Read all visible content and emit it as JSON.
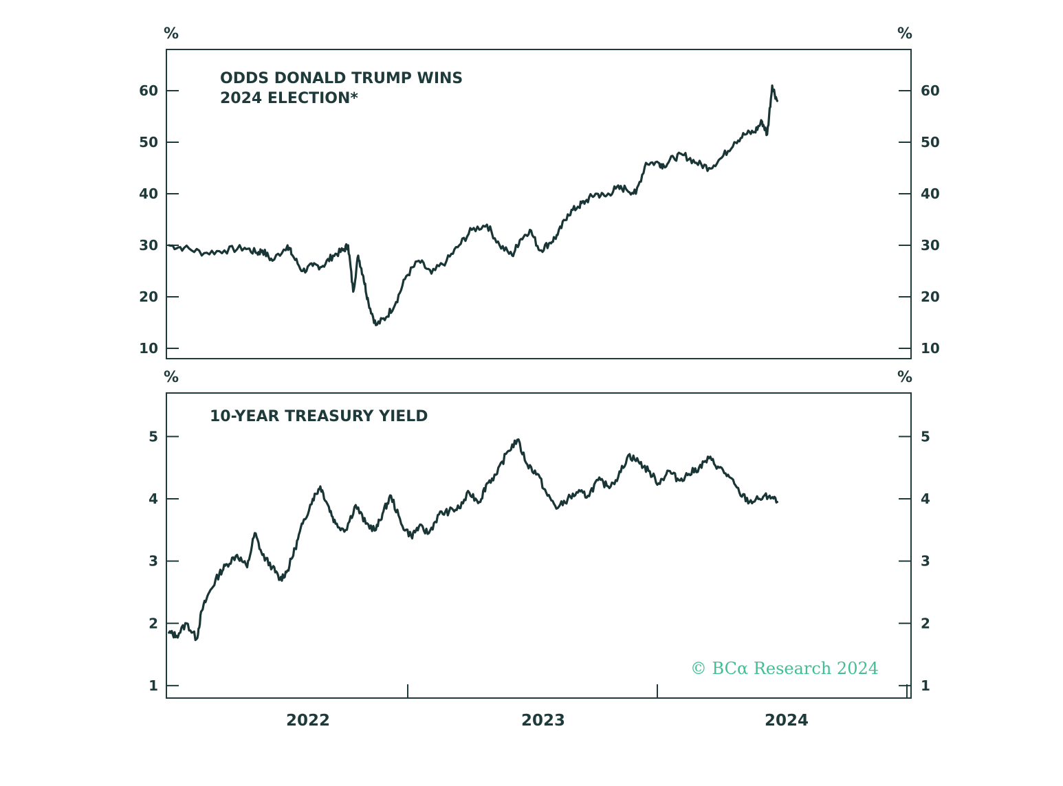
{
  "colors": {
    "line": "#1a3535",
    "text": "#1f3a3a",
    "credit": "#3fbf93"
  },
  "credit": "© BCα Research 2024",
  "chart_data": [
    {
      "type": "line",
      "title_line1": "ODDS DONALD TRUMP WINS",
      "title_line2": "2024 ELECTION*",
      "ylabel_left": "%",
      "ylabel_right": "%",
      "ylim": [
        8,
        68
      ],
      "yticks": [
        "10",
        "20",
        "30",
        "40",
        "50",
        "60"
      ],
      "x": [
        2021.56,
        2021.62,
        2021.7,
        2021.78,
        2021.86,
        2021.91,
        2021.93,
        2021.97,
        2022.03,
        2022.05,
        2022.09,
        2022.13,
        2022.17,
        2022.21,
        2022.25,
        2022.27,
        2022.29,
        2022.31,
        2022.33,
        2022.35,
        2022.38,
        2022.42,
        2022.46,
        2022.5,
        2022.55,
        2022.6,
        2022.66,
        2022.71,
        2022.76,
        2022.82,
        2022.87,
        2022.92,
        2022.95,
        2022.99,
        2023.03,
        2023.07,
        2023.1,
        2023.14,
        2023.18,
        2023.21,
        2023.25,
        2023.29,
        2023.33,
        2023.37,
        2023.41,
        2023.45,
        2023.5,
        2023.52,
        2023.56,
        2023.6,
        2023.65,
        2023.7,
        2023.75,
        2023.8,
        2023.84,
        2023.88,
        2023.91,
        2023.93,
        2023.95,
        2023.97
      ],
      "series": [
        {
          "name": "Odds Donald Trump wins 2024 election",
          "values": [
            30,
            29.5,
            28.5,
            29,
            29.5,
            28.5,
            29,
            27,
            30,
            28,
            25,
            26,
            26,
            28,
            29,
            30,
            21,
            28,
            24,
            19,
            14.5,
            16,
            19,
            24,
            27,
            24.5,
            27,
            30,
            33,
            34,
            30,
            28,
            31,
            33,
            29,
            30.5,
            32,
            36,
            37.5,
            38.5,
            40,
            39.5,
            41,
            41,
            40,
            46,
            46,
            45.5,
            47,
            47.5,
            46,
            45,
            47,
            50,
            51.5,
            52,
            54,
            51.5,
            61,
            58
          ]
        }
      ]
    },
    {
      "type": "line",
      "title": "10-YEAR TREASURY YIELD",
      "ylabel_left": "%",
      "ylabel_right": "%",
      "ylim": [
        0.8,
        5.7
      ],
      "yticks": [
        "1",
        "2",
        "3",
        "4",
        "5"
      ],
      "xtick_labels": [
        "2022",
        "2023",
        "2024"
      ],
      "x": [
        2021.56,
        2021.59,
        2021.63,
        2021.67,
        2021.69,
        2021.72,
        2021.76,
        2021.79,
        2021.83,
        2021.87,
        2021.9,
        2021.93,
        2021.97,
        2022.0,
        2022.03,
        2022.06,
        2022.09,
        2022.13,
        2022.16,
        2022.19,
        2022.22,
        2022.26,
        2022.3,
        2022.34,
        2022.38,
        2022.41,
        2022.44,
        2022.48,
        2022.52,
        2022.55,
        2022.59,
        2022.63,
        2022.67,
        2022.71,
        2022.75,
        2022.79,
        2022.82,
        2022.86,
        2022.9,
        2022.94,
        2022.98,
        2023.02,
        2023.06,
        2023.1,
        2023.14,
        2023.18,
        2023.22,
        2023.26,
        2023.3,
        2023.34,
        2023.38,
        2023.42,
        2023.46,
        2023.5,
        2023.54,
        2023.58,
        2023.62,
        2023.66,
        2023.7,
        2023.74,
        2023.78,
        2023.82,
        2023.86,
        2023.9,
        2023.94,
        2023.97
      ],
      "series": [
        {
          "name": "10-year Treasury yield",
          "values": [
            1.85,
            1.8,
            2.0,
            1.75,
            2.2,
            2.5,
            2.8,
            2.95,
            3.1,
            2.9,
            3.45,
            3.1,
            2.9,
            2.7,
            2.85,
            3.2,
            3.6,
            4.0,
            4.2,
            3.9,
            3.6,
            3.5,
            3.9,
            3.6,
            3.5,
            3.8,
            4.05,
            3.6,
            3.4,
            3.55,
            3.45,
            3.75,
            3.8,
            3.85,
            4.1,
            3.95,
            4.25,
            4.4,
            4.75,
            4.95,
            4.55,
            4.4,
            4.05,
            3.85,
            4.0,
            4.1,
            4.05,
            4.3,
            4.2,
            4.35,
            4.7,
            4.6,
            4.45,
            4.25,
            4.45,
            4.3,
            4.4,
            4.5,
            4.65,
            4.5,
            4.35,
            4.1,
            3.95,
            4.0,
            4.05,
            3.95
          ]
        }
      ]
    }
  ]
}
